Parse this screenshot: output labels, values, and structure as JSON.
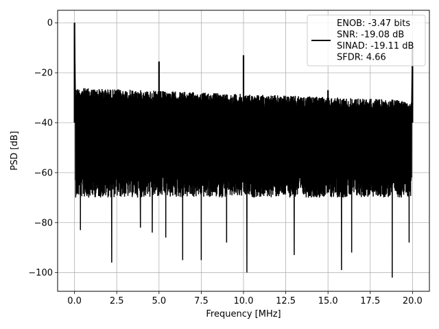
{
  "chart_data": {
    "type": "line",
    "xlabel": "Frequency [MHz]",
    "ylabel": "PSD [dB]",
    "xlim": [
      -1.0,
      21.0
    ],
    "ylim": [
      -107.5,
      5.0
    ],
    "xticks": [
      0.0,
      2.5,
      5.0,
      7.5,
      10.0,
      12.5,
      15.0,
      17.5,
      20.0
    ],
    "xtick_labels": [
      "0.0",
      "2.5",
      "5.0",
      "7.5",
      "10.0",
      "12.5",
      "15.0",
      "17.5",
      "20.0"
    ],
    "yticks": [
      0,
      -20,
      -40,
      -60,
      -80,
      -100
    ],
    "ytick_labels": [
      "0",
      "−20",
      "−40",
      "−60",
      "−80",
      "−100"
    ],
    "grid": true,
    "legend_position": "top-right",
    "series_color": "#000000",
    "legend_lines": [
      "ENOB: -3.47 bits",
      "SNR: -19.08 dB",
      "SINAD: -19.11 dB",
      "SFDR: 4.66"
    ],
    "noise_floor": {
      "x_range": [
        0.05,
        19.95
      ],
      "upper_db_start": -25,
      "upper_db_end": -30,
      "lower_db": -72
    },
    "peaks": [
      {
        "x": 0.0,
        "y": 0
      },
      {
        "x": 5.0,
        "y": -15.5
      },
      {
        "x": 10.0,
        "y": -13
      },
      {
        "x": 15.0,
        "y": -27
      },
      {
        "x": 20.0,
        "y": -8
      }
    ],
    "dips": [
      {
        "x": 0.35,
        "y": -83
      },
      {
        "x": 2.2,
        "y": -96
      },
      {
        "x": 3.9,
        "y": -82
      },
      {
        "x": 4.6,
        "y": -84
      },
      {
        "x": 5.4,
        "y": -86
      },
      {
        "x": 6.4,
        "y": -95
      },
      {
        "x": 7.5,
        "y": -95
      },
      {
        "x": 9.0,
        "y": -88
      },
      {
        "x": 10.2,
        "y": -100
      },
      {
        "x": 13.0,
        "y": -93
      },
      {
        "x": 15.8,
        "y": -99
      },
      {
        "x": 16.4,
        "y": -92
      },
      {
        "x": 18.8,
        "y": -102
      },
      {
        "x": 19.8,
        "y": -88
      }
    ]
  }
}
